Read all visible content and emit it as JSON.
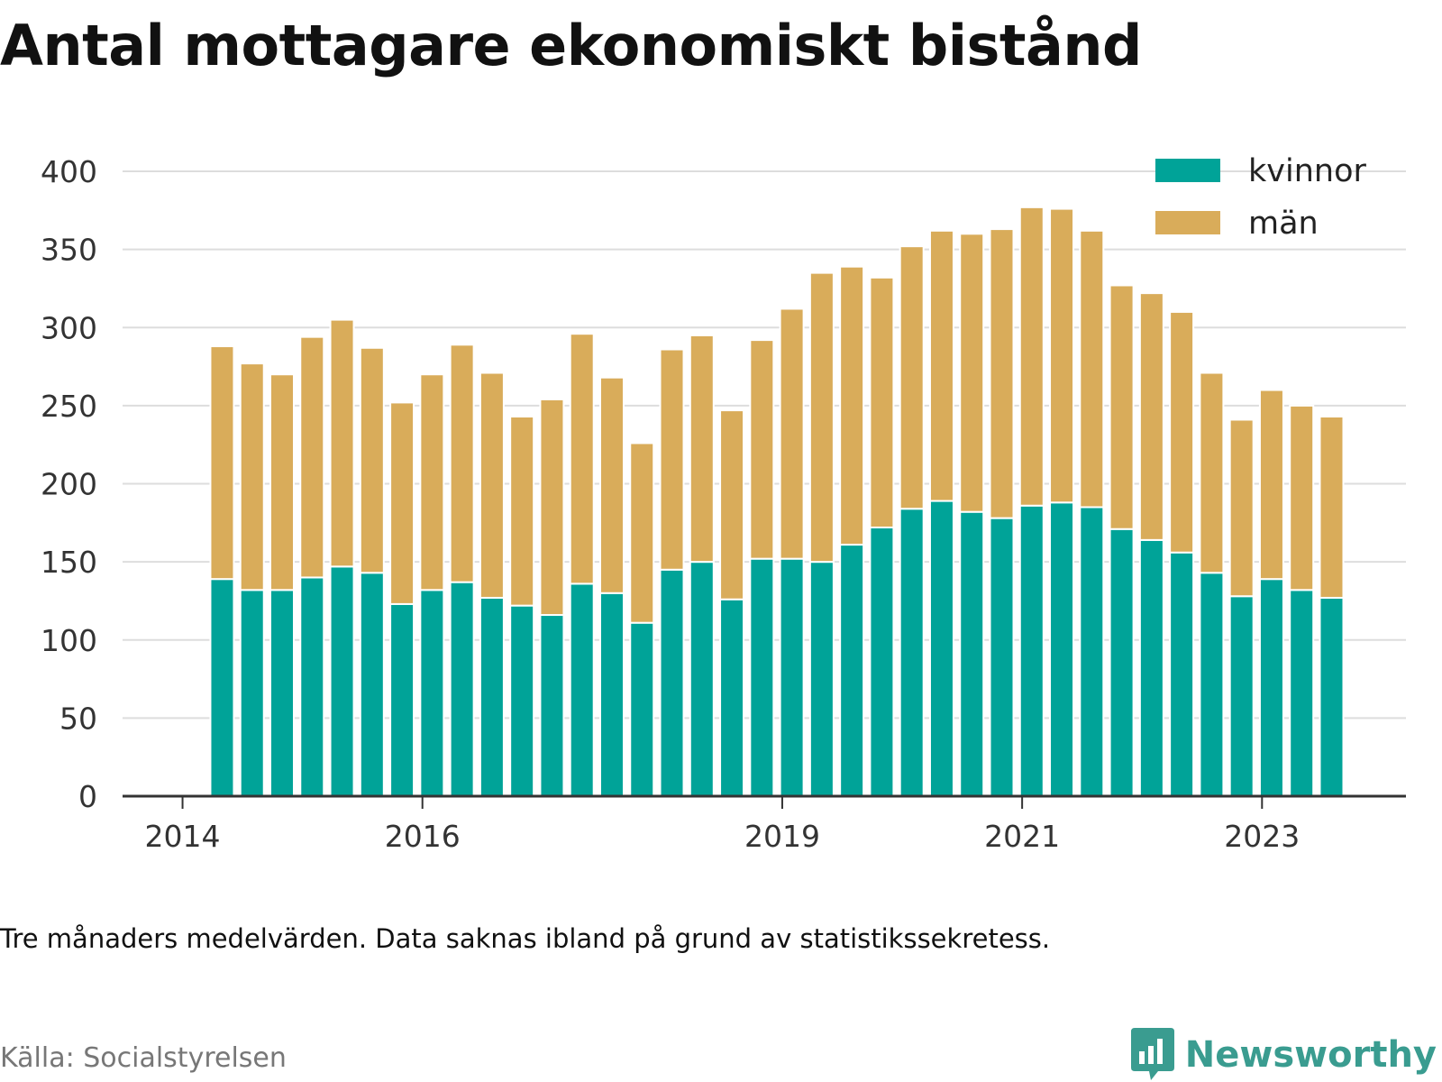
{
  "title": "Antal mottagare ekonomiskt bistånd",
  "note": "Tre månaders medelvärden. Data saknas ibland på grund av statistikssekretess.",
  "source": "Källa: Socialstyrelsen",
  "brand": "Newsworthy",
  "colors": {
    "kvinnor": "#00a398",
    "man": "#d9ac5a",
    "grid": "#dddddd",
    "axis": "#333333",
    "brand": "#3a9c90"
  },
  "chart_data": {
    "type": "bar",
    "stacked": true,
    "grid": true,
    "legend_position": "top-right",
    "ylim": [
      0,
      400
    ],
    "yticks": [
      0,
      50,
      100,
      150,
      200,
      250,
      300,
      350,
      400
    ],
    "xticks": [
      {
        "label": "2014",
        "at": 2014.0
      },
      {
        "label": "2016",
        "at": 2016.0
      },
      {
        "label": "2019",
        "at": 2019.0
      },
      {
        "label": "2021",
        "at": 2021.0
      },
      {
        "label": "2023",
        "at": 2023.0
      }
    ],
    "xlim": [
      2013.5,
      2024.2
    ],
    "x": [
      2014.33,
      2014.58,
      2014.83,
      2015.08,
      2015.33,
      2015.58,
      2015.83,
      2016.08,
      2016.33,
      2016.58,
      2016.83,
      2017.08,
      2017.33,
      2017.58,
      2017.83,
      2018.08,
      2018.33,
      2018.58,
      2018.83,
      2019.08,
      2019.33,
      2019.58,
      2019.83,
      2020.08,
      2020.33,
      2020.58,
      2020.83,
      2021.08,
      2021.33,
      2021.58,
      2021.83,
      2022.08,
      2022.33,
      2022.58,
      2022.83,
      2023.08,
      2023.33,
      2023.58
    ],
    "series": [
      {
        "name": "kvinnor",
        "values": [
          139,
          132,
          132,
          140,
          147,
          143,
          123,
          132,
          137,
          127,
          122,
          116,
          136,
          130,
          111,
          145,
          150,
          126,
          152,
          152,
          150,
          161,
          172,
          184,
          189,
          182,
          178,
          186,
          188,
          185,
          171,
          164,
          156,
          143,
          128,
          139,
          132,
          127
        ]
      },
      {
        "name": "män",
        "values": [
          149,
          145,
          138,
          154,
          158,
          144,
          129,
          138,
          152,
          144,
          121,
          138,
          160,
          138,
          115,
          141,
          145,
          121,
          140,
          160,
          185,
          178,
          160,
          168,
          173,
          178,
          185,
          191,
          188,
          177,
          156,
          158,
          154,
          128,
          113,
          121,
          118,
          116
        ]
      }
    ]
  }
}
